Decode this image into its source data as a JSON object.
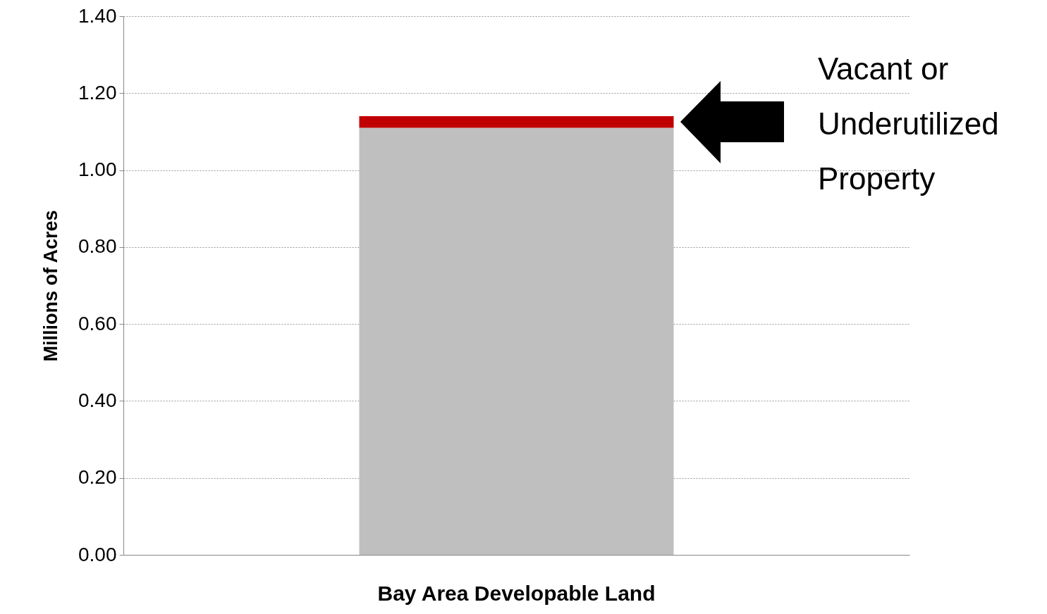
{
  "chart_data": {
    "type": "bar",
    "stacked": true,
    "ylabel": "Millions of Acres",
    "categories": [
      "Bay Area Developable Land"
    ],
    "series": [
      {
        "color": "#bfbfbf",
        "values": [
          1.11
        ]
      },
      {
        "color": "#c00000",
        "values": [
          0.03
        ]
      }
    ],
    "ylim": [
      0,
      1.4
    ],
    "yticks": [
      {
        "value": 0,
        "label": "0.00"
      },
      {
        "value": 0.2,
        "label": "0.20"
      },
      {
        "value": 0.4,
        "label": "0.40"
      },
      {
        "value": 0.6,
        "label": "0.60"
      },
      {
        "value": 0.8,
        "label": "0.80"
      },
      {
        "value": 1,
        "label": "1.00"
      },
      {
        "value": 1.2,
        "label": "1.20"
      },
      {
        "value": 1.4,
        "label": "1.40"
      }
    ],
    "grid": "y",
    "annotations": [
      "Vacant or Underutilized Property"
    ]
  }
}
